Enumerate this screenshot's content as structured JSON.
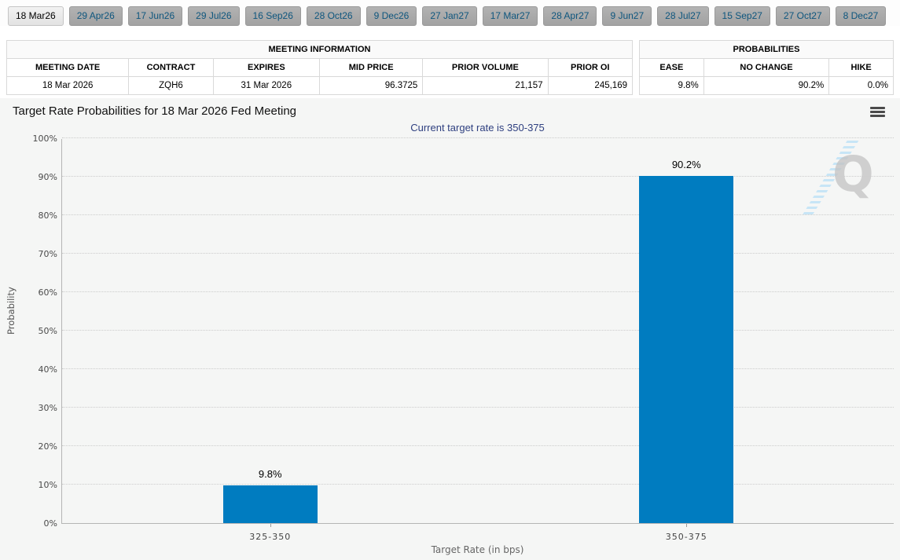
{
  "tabs": [
    {
      "label": "18 Mar26",
      "active": true
    },
    {
      "label": "29 Apr26",
      "active": false
    },
    {
      "label": "17 Jun26",
      "active": false
    },
    {
      "label": "29 Jul26",
      "active": false
    },
    {
      "label": "16 Sep26",
      "active": false
    },
    {
      "label": "28 Oct26",
      "active": false
    },
    {
      "label": "9 Dec26",
      "active": false
    },
    {
      "label": "27 Jan27",
      "active": false
    },
    {
      "label": "17 Mar27",
      "active": false
    },
    {
      "label": "28 Apr27",
      "active": false
    },
    {
      "label": "9 Jun27",
      "active": false
    },
    {
      "label": "28 Jul27",
      "active": false
    },
    {
      "label": "15 Sep27",
      "active": false
    },
    {
      "label": "27 Oct27",
      "active": false
    },
    {
      "label": "8 Dec27",
      "active": false
    }
  ],
  "meeting_info": {
    "title": "MEETING INFORMATION",
    "columns": [
      "MEETING DATE",
      "CONTRACT",
      "EXPIRES",
      "MID PRICE",
      "PRIOR VOLUME",
      "PRIOR OI"
    ],
    "row": {
      "meeting_date": "18 Mar 2026",
      "contract": "ZQH6",
      "expires": "31 Mar 2026",
      "mid_price": "96.3725",
      "prior_volume": "21,157",
      "prior_oi": "245,169"
    }
  },
  "probabilities": {
    "title": "PROBABILITIES",
    "columns": [
      "EASE",
      "NO CHANGE",
      "HIKE"
    ],
    "row": {
      "ease": "9.8%",
      "no_change": "90.2%",
      "hike": "0.0%"
    }
  },
  "chart_data": {
    "type": "bar",
    "title": "Target Rate Probabilities for 18 Mar 2026 Fed Meeting",
    "subtitle": "Current target rate is 350-375",
    "categories": [
      "325-350",
      "350-375"
    ],
    "values": [
      9.8,
      90.2
    ],
    "value_labels": [
      "9.8%",
      "90.2%"
    ],
    "xlabel": "Target Rate (in bps)",
    "ylabel": "Probability",
    "ylim": [
      0,
      100
    ],
    "ytick_step": 10,
    "ytick_suffix": "%",
    "bar_color": "#007cc0",
    "grid": "horizontal-dotted",
    "legend": "none"
  },
  "icons": {
    "menu": "hamburger-menu-icon",
    "watermark_letter": "Q"
  }
}
